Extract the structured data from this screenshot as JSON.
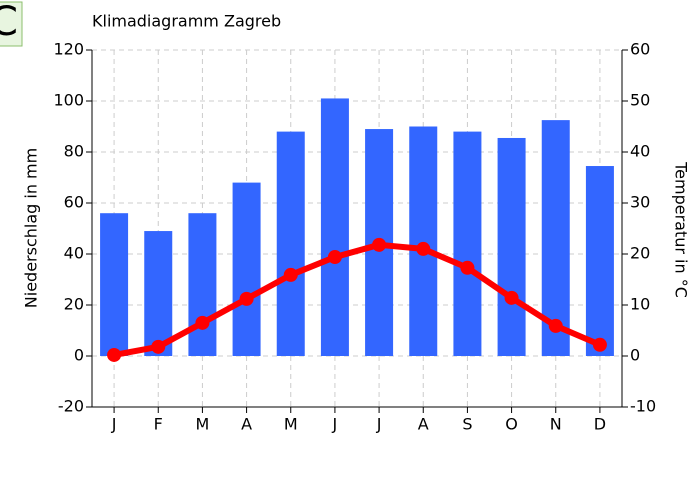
{
  "badge": "C",
  "chart_data": {
    "type": "bar",
    "title": "Klimadiagramm Zagreb",
    "y_label": "Niederschlag in mm",
    "y2_label": "Temperatur in °C",
    "categories": [
      "J",
      "F",
      "M",
      "A",
      "M",
      "J",
      "J",
      "A",
      "S",
      "O",
      "N",
      "D"
    ],
    "series": [
      {
        "type": "bar",
        "color": "#3366ff",
        "values": [
          56,
          49,
          56,
          68,
          88,
          101,
          89,
          90,
          88,
          85.5,
          92.5,
          74.5
        ]
      },
      {
        "type": "line",
        "color": "#ff0000",
        "axis": "y2",
        "values": [
          0.2,
          1.8,
          6.5,
          11.2,
          15.9,
          19.4,
          21.8,
          21,
          17.3,
          11.4,
          5.9,
          2.2
        ]
      }
    ],
    "ylim": [
      -20,
      120
    ],
    "yticks": [
      -20,
      0,
      20,
      40,
      60,
      80,
      100,
      120
    ],
    "y2lim": [
      -10,
      60
    ],
    "y2ticks": [
      -10,
      0,
      10,
      20,
      30,
      40,
      50,
      60
    ],
    "grid": true
  }
}
